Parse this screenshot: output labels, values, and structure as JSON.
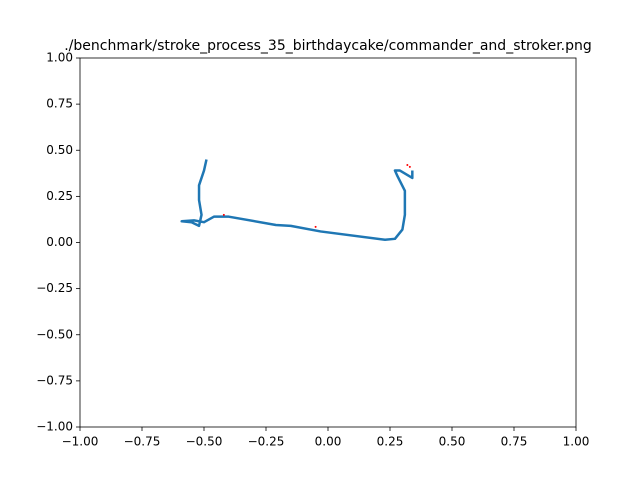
{
  "chart_data": {
    "type": "line",
    "title": "./benchmark/stroke_process_35_birthdaycake/commander_and_stroker.png",
    "xlim": [
      -1,
      1
    ],
    "ylim": [
      -1,
      1
    ],
    "xticks": [
      {
        "value": -1,
        "label": "−1.00"
      },
      {
        "value": -0.75,
        "label": "−0.75"
      },
      {
        "value": -0.5,
        "label": "−0.50"
      },
      {
        "value": -0.25,
        "label": "−0.25"
      },
      {
        "value": 0,
        "label": "0.00"
      },
      0.25,
      {
        "value": 0.5,
        "label": "0.50"
      },
      0.75,
      {
        "value": 1,
        "label": "1.00"
      }
    ],
    "yticks": [
      {
        "value": -1,
        "label": "−1.00"
      },
      {
        "value": -0.75,
        "label": "−0.75"
      },
      {
        "value": -0.5,
        "label": "−0.50"
      },
      {
        "value": -0.25,
        "label": "−0.25"
      },
      {
        "value": 0,
        "label": "0.00"
      },
      0.25,
      {
        "value": 0.5,
        "label": "0.50"
      },
      0.75,
      {
        "value": 1,
        "label": "1.00"
      }
    ],
    "series": [
      {
        "color": "#1f77b4",
        "x": [
          -0.49,
          -0.5,
          -0.52,
          -0.52,
          -0.51,
          -0.52,
          -0.55,
          -0.59,
          -0.54,
          -0.5,
          -0.46,
          -0.4,
          -0.21,
          -0.15,
          -0.03,
          0.23,
          0.27,
          0.3,
          0.31,
          0.31,
          0.28,
          0.27,
          0.29,
          0.34,
          0.34
        ],
        "values": [
          0.45,
          0.39,
          0.31,
          0.23,
          0.15,
          0.09,
          0.11,
          0.115,
          0.12,
          0.11,
          0.14,
          0.14,
          0.095,
          0.09,
          0.06,
          0.015,
          0.02,
          0.07,
          0.15,
          0.28,
          0.36,
          0.39,
          0.39,
          0.35,
          0.39
        ]
      },
      {
        "color": "#ff0000",
        "x": [
          -0.42,
          -0.05,
          0.32,
          0.33
        ],
        "values": [
          0.15,
          0.085,
          0.42,
          0.41
        ]
      }
    ]
  }
}
